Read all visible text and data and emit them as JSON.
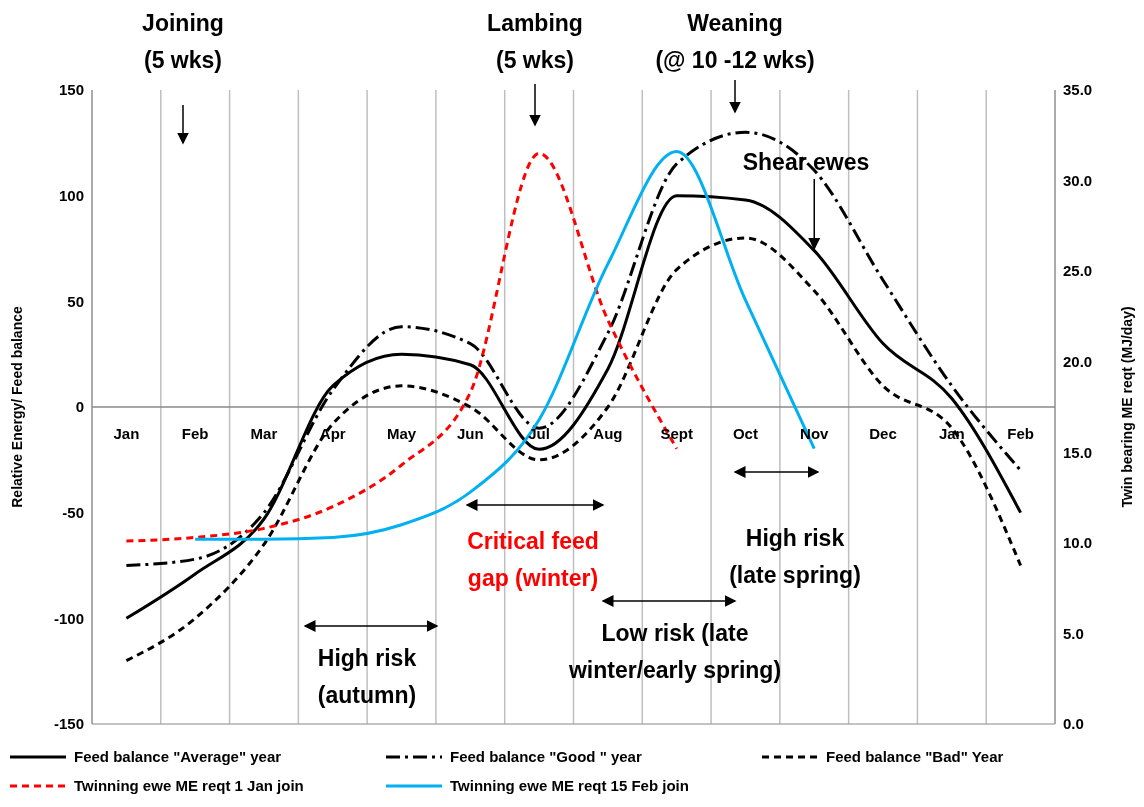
{
  "chart_data": {
    "type": "line",
    "ylabel": "Relative Energy/ Feed balance",
    "y2label": "Twin bearing ME reqt (MJ/day)",
    "categories": [
      "Jan",
      "Feb",
      "Mar",
      "Apr",
      "May",
      "Jun",
      "Jul",
      "Aug",
      "Sept",
      "Oct",
      "Nov",
      "Dec",
      "Jan",
      "Feb"
    ],
    "series": [
      {
        "name": "Feed balance \"Average\" year",
        "color": "#000000",
        "line_style": "solid",
        "values": [
          -100,
          -79,
          -53,
          10,
          25,
          20,
          -20,
          18,
          100,
          98,
          74,
          30,
          4,
          -50
        ]
      },
      {
        "name": "Feed balance \"Good \" year",
        "color": "#000000",
        "line_style": "dashdot",
        "values": [
          -75,
          -72,
          -50,
          8,
          38,
          30,
          -10,
          35,
          115,
          130,
          112,
          60,
          10,
          -30
        ]
      },
      {
        "name": "Feed balance \"Bad\" Year",
        "color": "#000000",
        "line_style": "dashed",
        "values": [
          -120,
          -100,
          -65,
          -8,
          10,
          0,
          -25,
          0,
          65,
          80,
          55,
          10,
          -10,
          -75
        ]
      },
      {
        "name": "Twinning ewe ME reqt 1 Jan join",
        "color": "#ff0000",
        "line_style": "dashed",
        "axis": "y2",
        "values": [
          10.1,
          10.3,
          10.8,
          12.0,
          14.3,
          18.3,
          31.5,
          22.3,
          15.2,
          null,
          null,
          null,
          null,
          null
        ]
      },
      {
        "name": "Twinning ewe ME reqt 15 Feb join",
        "color": "#00b0f0",
        "line_style": "solid",
        "axis": "y2",
        "values": [
          null,
          10.2,
          10.2,
          10.3,
          11.0,
          12.8,
          16.8,
          25.4,
          31.6,
          23.4,
          15.2,
          null,
          null,
          null
        ]
      }
    ],
    "ylim": [
      -150,
      150
    ],
    "yticks": [
      -150,
      -100,
      -50,
      0,
      50,
      100,
      150
    ],
    "y2lim": [
      0,
      35
    ],
    "y2ticks": [
      {
        "value": 0,
        "label": "0.0"
      },
      {
        "value": 5,
        "label": "5.0"
      },
      {
        "value": 10,
        "label": "10.0"
      },
      {
        "value": 15,
        "label": "15.0"
      },
      {
        "value": 20,
        "label": "20.0"
      },
      {
        "value": 25,
        "label": "25.0"
      },
      {
        "value": 30,
        "label": "30.0"
      },
      {
        "value": 35,
        "label": "35.0"
      }
    ],
    "grid": "x",
    "legend": "bottom",
    "marker": "none",
    "annotations": [
      "Joining\n(5 wks)",
      "Lambing\n(5 wks)",
      "Weaning\n(@ 10 -12 wks)",
      {
        "text": "Shear ewes",
        "x": "Nov",
        "y": 74
      },
      "Critical feed\ngap (winter)",
      "High risk\n(autumn)",
      "Low risk (late\nwinter/early spring)",
      "High risk\n(late spring)"
    ]
  }
}
